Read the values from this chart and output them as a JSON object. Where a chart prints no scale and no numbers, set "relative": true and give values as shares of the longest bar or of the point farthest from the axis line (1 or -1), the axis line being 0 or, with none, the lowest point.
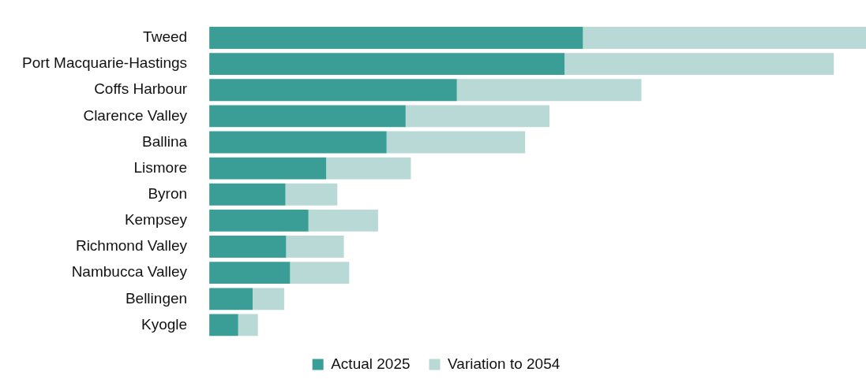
{
  "chart_data": {
    "type": "bar",
    "orientation": "horizontal",
    "stacked": true,
    "relative": true,
    "legend": "bottom",
    "categories": [
      "Tweed",
      "Port Macquarie-Hastings",
      "Coffs Harbour",
      "Clarence Valley",
      "Ballina",
      "Lismore",
      "Byron",
      "Kempsey",
      "Richmond Valley",
      "Nambucca Valley",
      "Bellingen",
      "Kyogle"
    ],
    "series": [
      {
        "name": "Actual 2025",
        "color": "#3a9e96",
        "values": [
          0.569,
          0.541,
          0.377,
          0.299,
          0.27,
          0.178,
          0.116,
          0.151,
          0.117,
          0.123,
          0.066,
          0.044
        ]
      },
      {
        "name": "Variation to 2054",
        "color": "#b8d9d6",
        "values": [
          0.431,
          0.41,
          0.281,
          0.219,
          0.211,
          0.129,
          0.079,
          0.106,
          0.088,
          0.09,
          0.048,
          0.03
        ]
      }
    ]
  }
}
